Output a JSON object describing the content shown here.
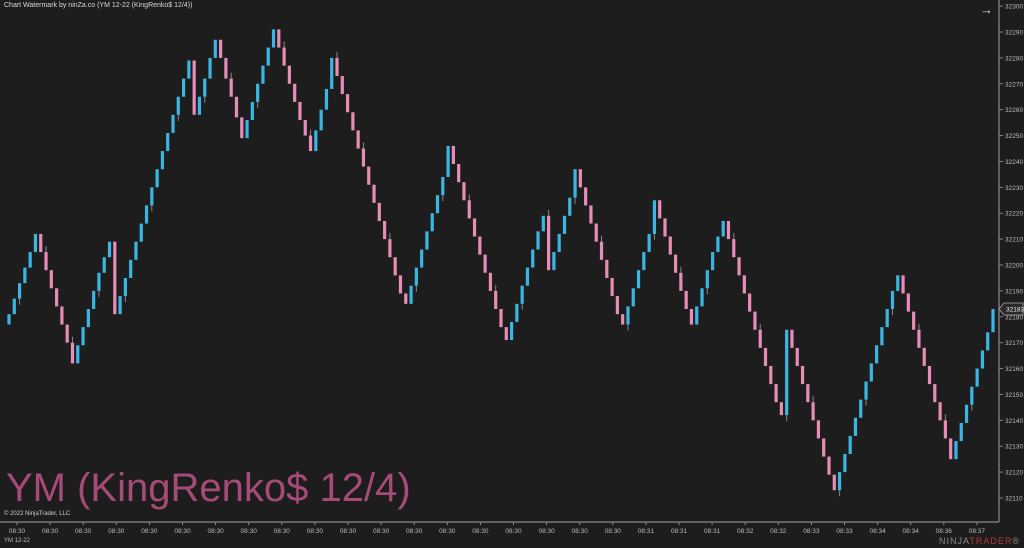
{
  "window": {
    "title": "Chart Watermark by ninZa.co (YM 12-22 (KingRenko$ 12/4))",
    "nav_icon": "arrow-right-icon"
  },
  "watermark": "YM (KingRenko$ 12/4)",
  "copyright": "© 2022 NinjaTrader, LLC",
  "instrument": "YM 12-22",
  "logo": {
    "part1": "NINJA",
    "part2": "TRADER",
    "mark": "®"
  },
  "colors": {
    "background": "#1d1d1d",
    "up": "#3ab6e4",
    "down": "#e88cb8",
    "watermark": "#a64a78"
  },
  "chart_data": {
    "type": "candlestick-renko",
    "ylim": [
      32104,
      32302
    ],
    "y_ticks": [
      32110,
      32120,
      32130,
      32140,
      32150,
      32160,
      32170,
      32180,
      32190,
      32200,
      32210,
      32220,
      32230,
      32240,
      32250,
      32260,
      32270,
      32280,
      32290,
      32300
    ],
    "x_ticks": [
      "08:30",
      "08:30",
      "08:30",
      "08:30",
      "08:30",
      "08:30",
      "08:30",
      "08:30",
      "08:30",
      "08:30",
      "08:30",
      "08:30",
      "08:30",
      "08:30",
      "08:30",
      "08:30",
      "08:30",
      "08:30",
      "08:30",
      "08:31",
      "08:31",
      "08:31",
      "08:32",
      "08:32",
      "08:33",
      "08:33",
      "08:34",
      "08:34",
      "08:36",
      "08:37"
    ],
    "last_price": 32183,
    "first_open": 32177,
    "closes": [
      32181,
      32187,
      32193,
      32199,
      32205,
      32212,
      32205,
      32198,
      32191,
      32184,
      32177,
      32170,
      32162,
      32169,
      32176,
      32183,
      32190,
      32197,
      32203,
      32209,
      32181,
      32188,
      32195,
      32202,
      32209,
      32216,
      32223,
      32230,
      32237,
      32244,
      32251,
      32258,
      32265,
      32272,
      32279,
      32258,
      32265,
      32272,
      32280,
      32287,
      32280,
      32272,
      32265,
      32257,
      32249,
      32256,
      32263,
      32270,
      32277,
      32284,
      32291,
      32284,
      32277,
      32270,
      32263,
      32256,
      32250,
      32244,
      32252,
      32260,
      32268,
      32280,
      32273,
      32266,
      32259,
      32252,
      32245,
      32238,
      32231,
      32224,
      32217,
      32210,
      32203,
      32196,
      32189,
      32185,
      32192,
      32199,
      32206,
      32213,
      32220,
      32227,
      32234,
      32246,
      32239,
      32232,
      32225,
      32218,
      32211,
      32204,
      32197,
      32190,
      32183,
      32176,
      32171,
      32178,
      32185,
      32192,
      32199,
      32206,
      32213,
      32219,
      32198,
      32205,
      32212,
      32219,
      32226,
      32237,
      32230,
      32223,
      32216,
      32209,
      32202,
      32195,
      32188,
      32181,
      32177,
      32184,
      32191,
      32198,
      32205,
      32212,
      32225,
      32218,
      32211,
      32204,
      32197,
      32190,
      32183,
      32177,
      32184,
      32191,
      32198,
      32205,
      32211,
      32217,
      32210,
      32203,
      32196,
      32189,
      32182,
      32175,
      32168,
      32161,
      32154,
      32147,
      32142,
      32175,
      32168,
      32161,
      32154,
      32147,
      32140,
      32133,
      32126,
      32119,
      32113,
      32120,
      32127,
      32134,
      32141,
      32148,
      32155,
      32162,
      32169,
      32176,
      32183,
      32190,
      32196,
      32189,
      32182,
      32175,
      32168,
      32161,
      32154,
      32147,
      32140,
      32133,
      32125,
      32132,
      32139,
      32146,
      32153,
      32160,
      32167,
      32174,
      32183
    ]
  }
}
